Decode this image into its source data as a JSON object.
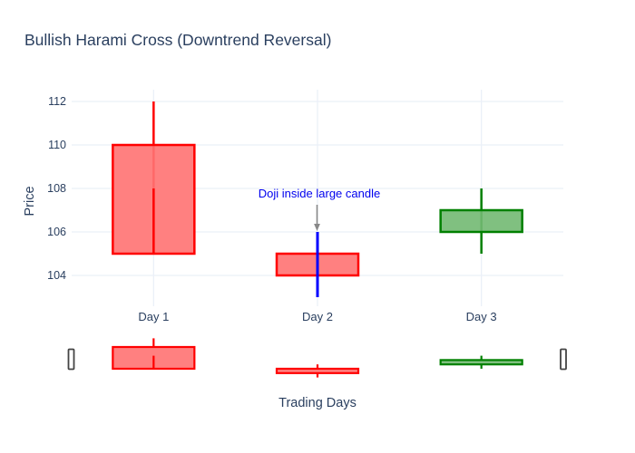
{
  "chart_data": {
    "type": "candlestick",
    "title": "Bullish Harami Cross (Downtrend Reversal)",
    "xlabel": "Trading Days",
    "ylabel": "Price",
    "categories": [
      "Day 1",
      "Day 2",
      "Day 3"
    ],
    "yticks": [
      104,
      106,
      108,
      110,
      112
    ],
    "ylim": [
      102.6,
      112.5
    ],
    "grid": true,
    "legend": false,
    "rangeslider": true,
    "candles": [
      {
        "label": "Day 1",
        "open": 110,
        "high": 112,
        "low": 105,
        "close": 105,
        "direction": "bearish",
        "inner_wick_top": 108
      },
      {
        "label": "Day 2",
        "open": 105,
        "high": 106,
        "low": 103,
        "close": 104,
        "direction": "bearish",
        "doji_highlight": {
          "from": 103,
          "to": 106
        }
      },
      {
        "label": "Day 3",
        "open": 106,
        "high": 108,
        "low": 105,
        "close": 107,
        "direction": "bullish"
      }
    ],
    "annotation": {
      "text": "Doji inside large candle",
      "target_category": "Day 2",
      "target_value": 106
    },
    "colors": {
      "bearish_line": "#ff0000",
      "bearish_fill": "#ff8080",
      "bullish_line": "#008000",
      "bullish_fill": "#80c080",
      "doji_line": "#0000ff",
      "annotation_text": "#0000ee",
      "arrow": "#888888",
      "grid": "#ebf0f8",
      "label": "#2a3f5f",
      "grabber_border": "#444444",
      "background": "#ffffff"
    }
  }
}
